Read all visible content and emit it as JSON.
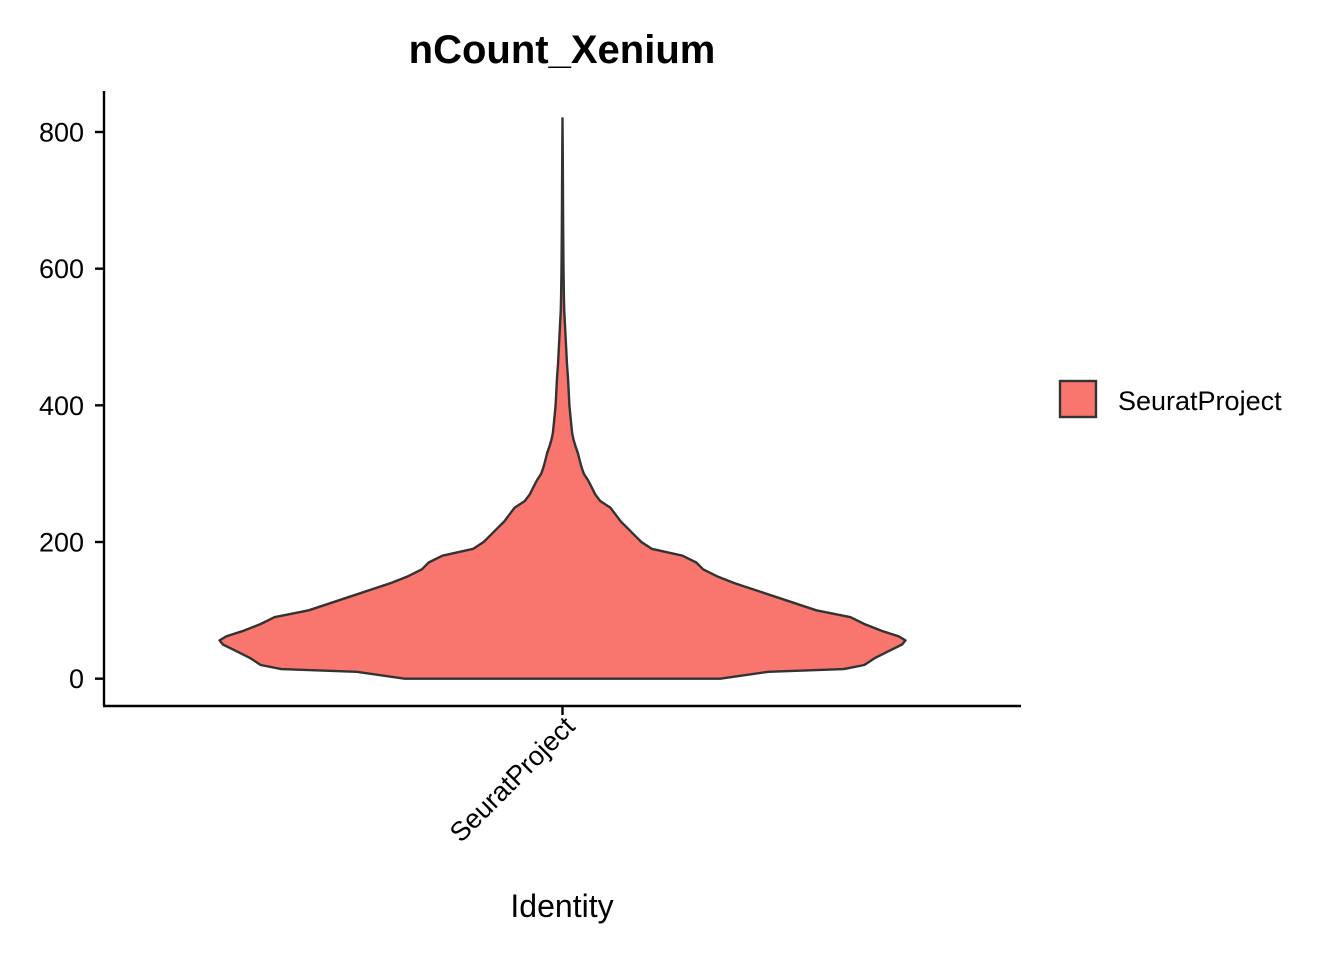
{
  "chart_data": {
    "type": "violin",
    "title": "nCount_Xenium",
    "xlabel": "Identity",
    "ylabel": "",
    "categories": [
      "SeuratProject"
    ],
    "ylim": [
      -40,
      860
    ],
    "yticks": [
      0,
      200,
      400,
      600,
      800
    ],
    "ytick_labels": [
      "0",
      "200",
      "400",
      "600",
      "800"
    ],
    "legend": {
      "position": "right",
      "entries": [
        {
          "label": "SeuratProject",
          "color": "#F8766D"
        }
      ]
    },
    "series": [
      {
        "category": "SeuratProject",
        "color": "#F8766D",
        "outline_color": "#333333",
        "y_min": 0,
        "y_max": 820,
        "density_profile": [
          [
            0,
            0.46
          ],
          [
            10,
            0.6
          ],
          [
            14,
            0.82
          ],
          [
            20,
            0.88
          ],
          [
            30,
            0.91
          ],
          [
            40,
            0.95
          ],
          [
            50,
            0.99
          ],
          [
            56,
            1.0
          ],
          [
            62,
            0.98
          ],
          [
            70,
            0.93
          ],
          [
            80,
            0.88
          ],
          [
            90,
            0.84
          ],
          [
            100,
            0.74
          ],
          [
            120,
            0.62
          ],
          [
            140,
            0.5
          ],
          [
            150,
            0.45
          ],
          [
            160,
            0.41
          ],
          [
            170,
            0.39
          ],
          [
            180,
            0.35
          ],
          [
            190,
            0.26
          ],
          [
            200,
            0.23
          ],
          [
            210,
            0.21
          ],
          [
            220,
            0.19
          ],
          [
            230,
            0.17
          ],
          [
            240,
            0.155
          ],
          [
            250,
            0.14
          ],
          [
            260,
            0.11
          ],
          [
            270,
            0.095
          ],
          [
            280,
            0.085
          ],
          [
            290,
            0.075
          ],
          [
            300,
            0.062
          ],
          [
            310,
            0.055
          ],
          [
            320,
            0.05
          ],
          [
            330,
            0.045
          ],
          [
            340,
            0.038
          ],
          [
            350,
            0.032
          ],
          [
            360,
            0.028
          ],
          [
            380,
            0.024
          ],
          [
            400,
            0.02
          ],
          [
            420,
            0.018
          ],
          [
            440,
            0.016
          ],
          [
            460,
            0.013
          ],
          [
            480,
            0.011
          ],
          [
            500,
            0.009
          ],
          [
            520,
            0.007
          ],
          [
            540,
            0.005
          ],
          [
            560,
            0.004
          ],
          [
            600,
            0.003
          ],
          [
            650,
            0.002
          ],
          [
            700,
            0.0015
          ],
          [
            760,
            0.001
          ],
          [
            820,
            0
          ]
        ]
      }
    ]
  }
}
